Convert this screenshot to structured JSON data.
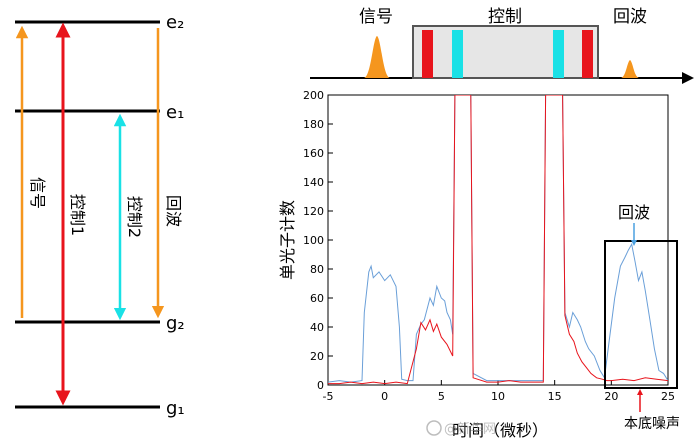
{
  "energy_levels": {
    "e2": "e₂",
    "e1": "e₁",
    "g2": "g₂",
    "g1": "g₁"
  },
  "transitions": {
    "signal": "信号",
    "control1": "控制1",
    "control2": "控制2",
    "echo": "回波"
  },
  "pulse_sequence": {
    "signal": "信号",
    "control": "控制",
    "echo": "回波"
  },
  "colors": {
    "orange": "#f5961e",
    "red": "#e8141c",
    "cyan": "#19e1e6",
    "blue_trace": "#6a9fd8",
    "red_trace": "#e8141c",
    "control_box": "#e6e6e6"
  },
  "chart_data": {
    "type": "line",
    "xlabel": "时间（微秒）",
    "ylabel": "单光子计数",
    "xlim": [
      -5,
      25
    ],
    "ylim": [
      0,
      200
    ],
    "xticks": [
      -5,
      0,
      5,
      10,
      15,
      20,
      25
    ],
    "yticks": [
      0,
      20,
      40,
      60,
      80,
      100,
      120,
      140,
      160,
      180,
      200
    ],
    "annotation_echo": "回波",
    "annotation_noise": "本底噪声",
    "series": [
      {
        "color": "#6a9fd8",
        "points": [
          [
            -5,
            2
          ],
          [
            -4,
            3
          ],
          [
            -3,
            2
          ],
          [
            -2,
            3
          ],
          [
            -1.8,
            50
          ],
          [
            -1.4,
            78
          ],
          [
            -1.2,
            82
          ],
          [
            -1,
            74
          ],
          [
            -0.5,
            78
          ],
          [
            0,
            72
          ],
          [
            0.5,
            76
          ],
          [
            1,
            68
          ],
          [
            1.3,
            40
          ],
          [
            1.5,
            4
          ],
          [
            2,
            3
          ],
          [
            2.5,
            3
          ],
          [
            2.8,
            35
          ],
          [
            3.2,
            42
          ],
          [
            3.5,
            45
          ],
          [
            4,
            60
          ],
          [
            4.3,
            55
          ],
          [
            4.6,
            68
          ],
          [
            5,
            60
          ],
          [
            5.3,
            58
          ],
          [
            5.5,
            50
          ],
          [
            5.8,
            45
          ],
          [
            6,
            35
          ],
          [
            6.2,
            200
          ],
          [
            7.6,
            200
          ],
          [
            7.8,
            8
          ],
          [
            9,
            3
          ],
          [
            10,
            3
          ],
          [
            11,
            3
          ],
          [
            12,
            3
          ],
          [
            13,
            3
          ],
          [
            14,
            3
          ],
          [
            14.2,
            200
          ],
          [
            15.7,
            200
          ],
          [
            15.9,
            50
          ],
          [
            16.3,
            40
          ],
          [
            16.6,
            50
          ],
          [
            17,
            45
          ],
          [
            17.3,
            40
          ],
          [
            17.7,
            30
          ],
          [
            18,
            25
          ],
          [
            18.5,
            20
          ],
          [
            19,
            10
          ],
          [
            19.4,
            5
          ],
          [
            19.8,
            30
          ],
          [
            20.3,
            60
          ],
          [
            20.8,
            82
          ],
          [
            21.2,
            88
          ],
          [
            21.5,
            93
          ],
          [
            21.8,
            97
          ],
          [
            22.1,
            85
          ],
          [
            22.4,
            72
          ],
          [
            22.7,
            78
          ],
          [
            23,
            65
          ],
          [
            23.4,
            45
          ],
          [
            23.8,
            25
          ],
          [
            24.2,
            10
          ],
          [
            24.6,
            8
          ],
          [
            25,
            3
          ]
        ]
      },
      {
        "color": "#e8141c",
        "points": [
          [
            -5,
            1
          ],
          [
            -4,
            1
          ],
          [
            -3,
            2
          ],
          [
            -2,
            1
          ],
          [
            -1,
            2
          ],
          [
            0,
            1
          ],
          [
            1,
            2
          ],
          [
            2,
            1
          ],
          [
            2.8,
            25
          ],
          [
            3.2,
            43
          ],
          [
            3.6,
            38
          ],
          [
            4,
            45
          ],
          [
            4.3,
            37
          ],
          [
            4.6,
            42
          ],
          [
            5,
            33
          ],
          [
            5.5,
            28
          ],
          [
            6,
            20
          ],
          [
            6.2,
            200
          ],
          [
            7.6,
            200
          ],
          [
            7.8,
            5
          ],
          [
            9,
            2
          ],
          [
            10,
            2
          ],
          [
            11,
            3
          ],
          [
            12,
            2
          ],
          [
            13,
            2
          ],
          [
            14,
            2
          ],
          [
            14.2,
            200
          ],
          [
            15.7,
            200
          ],
          [
            15.9,
            48
          ],
          [
            16.3,
            35
          ],
          [
            16.7,
            30
          ],
          [
            17,
            22
          ],
          [
            17.4,
            16
          ],
          [
            17.8,
            12
          ],
          [
            18.2,
            8
          ],
          [
            18.7,
            5
          ],
          [
            19.2,
            4
          ],
          [
            19.6,
            3
          ],
          [
            20,
            3
          ],
          [
            21,
            4
          ],
          [
            22,
            3
          ],
          [
            23,
            5
          ],
          [
            24,
            4
          ],
          [
            25,
            3
          ]
        ]
      }
    ]
  }
}
